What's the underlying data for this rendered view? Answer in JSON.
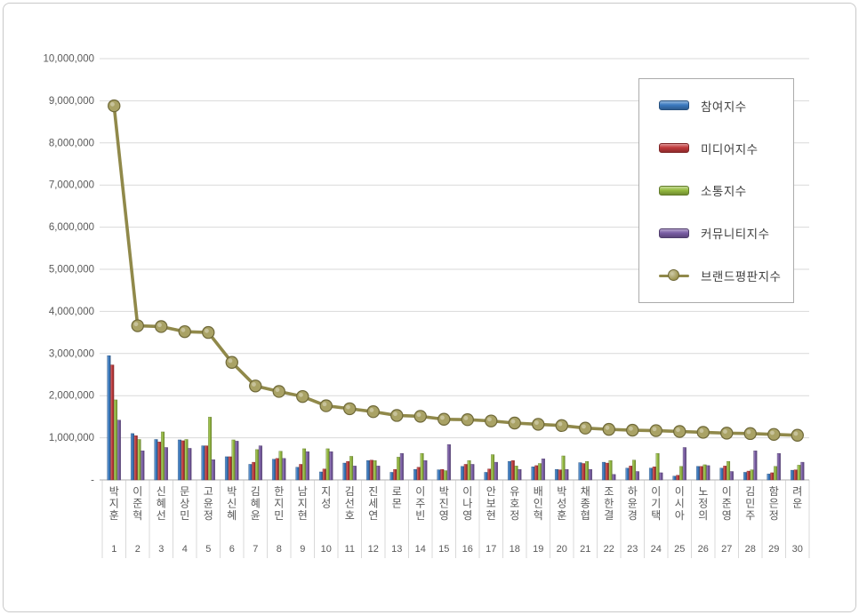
{
  "colors": {
    "participation": "#3b7ac0",
    "media": "#c0393b",
    "communication": "#95bb40",
    "community": "#7a5da5",
    "brand_reputation": "#9d9550",
    "gridline": "#d9d9d9",
    "axis_line": "#bfbfbf",
    "axis_text": "#595959"
  },
  "y_axis": {
    "labels": [
      "10,000,000",
      "9,000,000",
      "8,000,000",
      "7,000,000",
      "6,000,000",
      "5,000,000",
      "4,000,000",
      "3,000,000",
      "2,000,000",
      "1,000,000"
    ],
    "zero_label": "-"
  },
  "legend": {
    "items": [
      {
        "label": "참여지수",
        "color": "#3b7ac0",
        "type": "bar"
      },
      {
        "label": "미디어지수",
        "color": "#c0393b",
        "type": "bar"
      },
      {
        "label": "소통지수",
        "color": "#95bb40",
        "type": "bar"
      },
      {
        "label": "커뮤니티지수",
        "color": "#7a5da5",
        "type": "bar"
      },
      {
        "label": "브랜드평판지수",
        "color": "#9d9550",
        "type": "line"
      }
    ]
  },
  "chart_data": {
    "type": "bar+line",
    "title": "",
    "xlabel": "",
    "ylabel": "",
    "ylim": [
      0,
      10000000
    ],
    "grid": true,
    "legend_position": "top-right",
    "categories": [
      "박지훈",
      "이준혁",
      "신혜선",
      "문상민",
      "고윤정",
      "박신혜",
      "김혜윤",
      "한지민",
      "남지현",
      "지성",
      "김선호",
      "진세연",
      "로몬",
      "이주빈",
      "박진영",
      "이나영",
      "안보현",
      "유호정",
      "배인혁",
      "박성훈",
      "채종협",
      "조한결",
      "하윤경",
      "이기택",
      "이시아",
      "노정의",
      "이준영",
      "김민주",
      "함은정",
      "려운"
    ],
    "ranks": [
      "1",
      "2",
      "3",
      "4",
      "5",
      "6",
      "7",
      "8",
      "9",
      "10",
      "11",
      "12",
      "13",
      "14",
      "15",
      "16",
      "17",
      "18",
      "19",
      "20",
      "21",
      "22",
      "23",
      "24",
      "25",
      "26",
      "27",
      "28",
      "29",
      "30"
    ],
    "series": [
      {
        "name": "참여지수",
        "type": "bar",
        "color": "#3b7ac0",
        "values": [
          2950000,
          1100000,
          960000,
          950000,
          810000,
          550000,
          370000,
          490000,
          300000,
          190000,
          400000,
          460000,
          180000,
          250000,
          240000,
          320000,
          180000,
          440000,
          310000,
          250000,
          410000,
          420000,
          280000,
          280000,
          90000,
          320000,
          280000,
          180000,
          140000,
          230000
        ]
      },
      {
        "name": "미디어지수",
        "type": "bar",
        "color": "#c0393b",
        "values": [
          2730000,
          1050000,
          900000,
          930000,
          810000,
          550000,
          420000,
          510000,
          370000,
          260000,
          440000,
          470000,
          250000,
          300000,
          250000,
          370000,
          260000,
          460000,
          340000,
          240000,
          390000,
          400000,
          330000,
          310000,
          110000,
          320000,
          330000,
          210000,
          170000,
          240000
        ]
      },
      {
        "name": "소통지수",
        "type": "bar",
        "color": "#95bb40",
        "values": [
          1900000,
          960000,
          1140000,
          960000,
          1490000,
          950000,
          720000,
          680000,
          740000,
          740000,
          560000,
          460000,
          540000,
          630000,
          220000,
          460000,
          600000,
          330000,
          390000,
          570000,
          440000,
          460000,
          470000,
          630000,
          320000,
          360000,
          440000,
          240000,
          320000,
          350000
        ]
      },
      {
        "name": "커뮤니티지수",
        "type": "bar",
        "color": "#7a5da5",
        "values": [
          1420000,
          690000,
          770000,
          750000,
          480000,
          920000,
          810000,
          510000,
          670000,
          670000,
          330000,
          330000,
          630000,
          460000,
          840000,
          370000,
          420000,
          250000,
          500000,
          250000,
          250000,
          130000,
          200000,
          170000,
          770000,
          340000,
          200000,
          690000,
          630000,
          420000
        ]
      },
      {
        "name": "브랜드평판지수",
        "type": "line",
        "color": "#9d9550",
        "values": [
          8880000,
          3660000,
          3640000,
          3520000,
          3500000,
          2790000,
          2230000,
          2100000,
          1980000,
          1760000,
          1690000,
          1620000,
          1530000,
          1510000,
          1440000,
          1430000,
          1400000,
          1350000,
          1320000,
          1290000,
          1230000,
          1200000,
          1180000,
          1170000,
          1150000,
          1130000,
          1110000,
          1100000,
          1080000,
          1060000
        ]
      }
    ]
  }
}
